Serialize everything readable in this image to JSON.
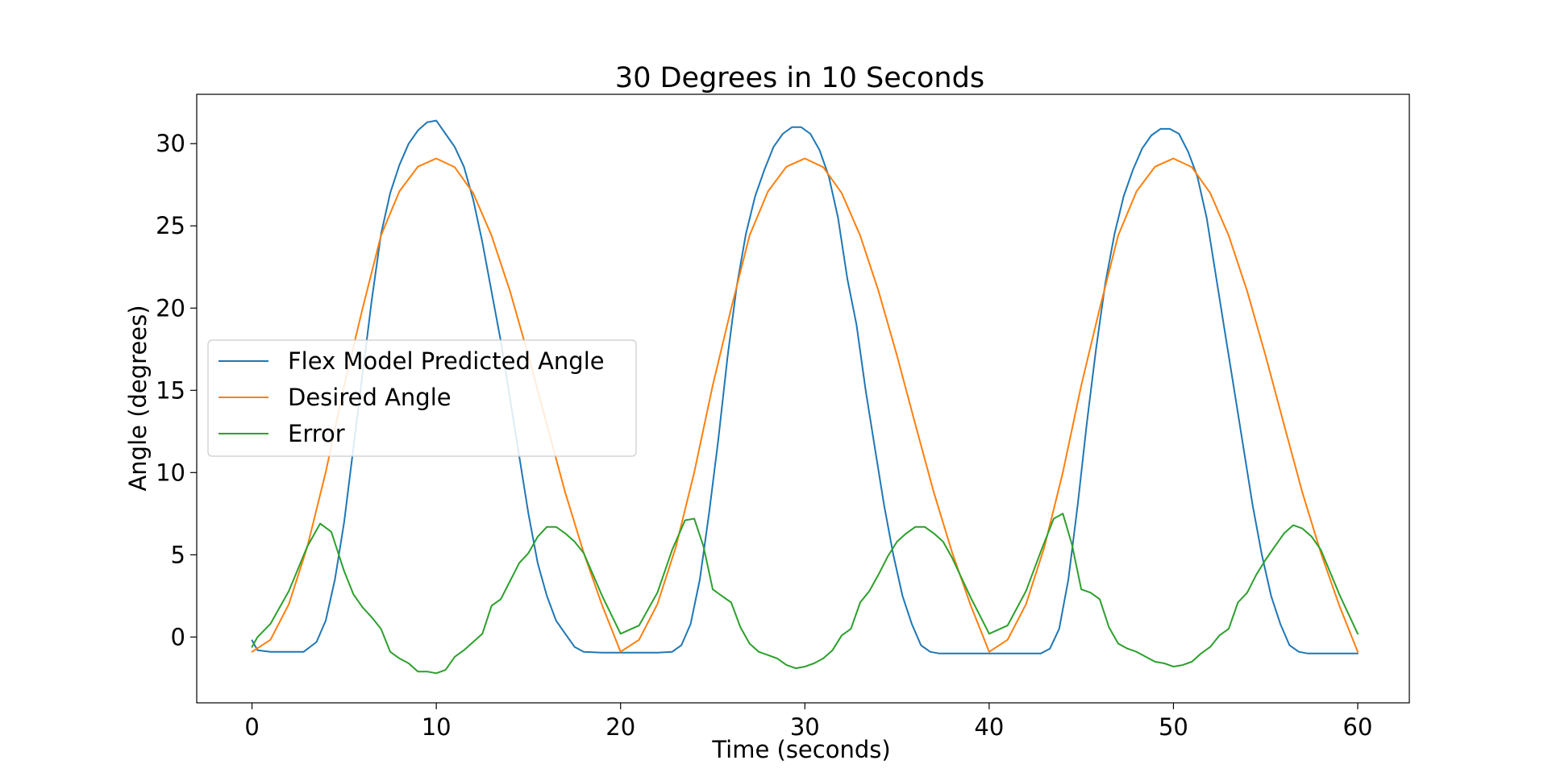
{
  "chart_data": {
    "type": "line",
    "title": "30 Degrees in 10 Seconds",
    "xlabel": "Time (seconds)",
    "ylabel": "Angle (degrees)",
    "xlim": [
      -3,
      62.8
    ],
    "ylim": [
      -4,
      33
    ],
    "xticks": [
      0,
      10,
      20,
      30,
      40,
      50,
      60
    ],
    "yticks": [
      0,
      5,
      10,
      15,
      20,
      25,
      30
    ],
    "grid": false,
    "legend_position": "center-left",
    "series": [
      {
        "name": "Flex Model Predicted Angle",
        "color": "#1f77b4",
        "x": [
          0,
          0.3,
          1,
          2,
          2.8,
          3.5,
          4,
          4.5,
          5,
          5.5,
          6,
          6.5,
          7,
          7.5,
          8,
          8.5,
          9,
          9.5,
          10,
          10.5,
          11,
          11.5,
          12,
          12.5,
          13,
          13.5,
          14,
          14.5,
          15,
          15.5,
          16,
          16.5,
          17,
          17.5,
          18,
          19,
          20,
          21,
          22,
          22.8,
          23.3,
          23.8,
          24.3,
          24.8,
          25.3,
          25.8,
          26.3,
          26.8,
          27.3,
          27.8,
          28.3,
          28.8,
          29.3,
          29.8,
          30.3,
          30.8,
          31.3,
          31.8,
          32.3,
          32.8,
          33.3,
          33.8,
          34.3,
          34.8,
          35.3,
          35.8,
          36.3,
          36.8,
          37.3,
          38,
          39,
          40,
          41,
          42,
          42.8,
          43.3,
          43.8,
          44.3,
          44.8,
          45.3,
          45.8,
          46.3,
          46.8,
          47.3,
          47.8,
          48.3,
          48.8,
          49.3,
          49.8,
          50.3,
          50.8,
          51.3,
          51.8,
          52.3,
          52.8,
          53.3,
          53.8,
          54.3,
          54.8,
          55.3,
          55.8,
          56.3,
          56.8,
          57.3,
          58,
          59,
          60
        ],
        "y": [
          -0.2,
          -0.8,
          -0.9,
          -0.9,
          -0.9,
          -0.3,
          1,
          3.5,
          7,
          11.5,
          16,
          20.5,
          24.5,
          27,
          28.7,
          30,
          30.8,
          31.3,
          31.4,
          30.6,
          29.8,
          28.6,
          26.6,
          24,
          21,
          18,
          14.5,
          11,
          7.5,
          4.5,
          2.5,
          1,
          0.2,
          -0.6,
          -0.9,
          -0.95,
          -0.95,
          -0.95,
          -0.95,
          -0.9,
          -0.5,
          0.8,
          3.5,
          7.5,
          12,
          17,
          21.3,
          24.5,
          26.8,
          28.4,
          29.8,
          30.6,
          31,
          31,
          30.6,
          29.6,
          28,
          25.5,
          21.8,
          19,
          15,
          11.5,
          8,
          5,
          2.5,
          0.8,
          -0.5,
          -0.9,
          -1,
          -1,
          -1,
          -1,
          -1,
          -1,
          -1,
          -0.7,
          0.5,
          3.5,
          8,
          13,
          17.5,
          21.5,
          24.5,
          26.8,
          28.4,
          29.7,
          30.5,
          30.9,
          30.9,
          30.6,
          29.5,
          28,
          25.5,
          22,
          18.5,
          15,
          11.5,
          8,
          5,
          2.5,
          0.8,
          -0.5,
          -0.9,
          -1,
          -1,
          -1,
          -1
        ]
      },
      {
        "name": "Desired Angle",
        "color": "#ff7f0e",
        "x": [
          0,
          1,
          2,
          3,
          4,
          5,
          6,
          7,
          8,
          9,
          10,
          11,
          12,
          13,
          14,
          15,
          16,
          17,
          18,
          19,
          20,
          21,
          22,
          23,
          24,
          25,
          26,
          27,
          28,
          29,
          30,
          31,
          32,
          33,
          34,
          35,
          36,
          37,
          38,
          39,
          40,
          41,
          42,
          43,
          44,
          45,
          46,
          47,
          48,
          49,
          50,
          51,
          52,
          53,
          54,
          55,
          56,
          57,
          58,
          59,
          60
        ],
        "y": [
          -0.9,
          -0.17,
          2.0,
          5.48,
          10.02,
          15.3,
          19.98,
          24.42,
          27.1,
          28.6,
          29.1,
          28.57,
          26.99,
          24.41,
          21.03,
          17.1,
          12.91,
          8.78,
          5.12,
          1.92,
          -0.9,
          -0.17,
          2.0,
          5.48,
          10.02,
          15.3,
          19.98,
          24.42,
          27.1,
          28.6,
          29.1,
          28.57,
          26.99,
          24.41,
          21.03,
          17.1,
          12.91,
          8.78,
          5.12,
          1.92,
          -0.9,
          -0.17,
          2.0,
          5.48,
          10.02,
          15.3,
          19.98,
          24.42,
          27.1,
          28.6,
          29.1,
          28.57,
          26.99,
          24.41,
          21.03,
          17.1,
          12.91,
          8.78,
          5.12,
          1.92,
          -0.9
        ]
      },
      {
        "name": "Error",
        "color": "#2ca02c",
        "x": [
          0,
          0.3,
          1,
          2,
          3,
          3.7,
          4.3,
          5,
          5.5,
          6,
          6.5,
          7,
          7.5,
          8,
          8.5,
          9,
          9.5,
          10,
          10.5,
          11,
          11.5,
          12,
          12.5,
          13,
          13.5,
          14,
          14.5,
          15,
          15.5,
          16,
          16.5,
          17,
          17.5,
          18,
          19,
          20,
          21,
          22,
          22.8,
          23.5,
          24,
          24.5,
          25,
          25.5,
          26,
          26.5,
          27,
          27.5,
          28,
          28.5,
          29,
          29.5,
          30,
          30.5,
          31,
          31.5,
          32,
          32.5,
          33,
          33.5,
          34,
          34.5,
          35,
          35.5,
          36,
          36.5,
          37,
          37.5,
          38,
          39,
          40,
          41,
          42,
          42.8,
          43.5,
          44,
          44.5,
          45,
          45.5,
          46,
          46.5,
          47,
          47.5,
          48,
          48.5,
          49,
          49.5,
          50,
          50.5,
          51,
          51.5,
          52,
          52.5,
          53,
          53.5,
          54,
          54.5,
          55,
          55.5,
          56,
          56.5,
          57,
          57.5,
          58,
          59,
          60
        ],
        "y": [
          -0.6,
          0,
          0.8,
          2.8,
          5.5,
          6.9,
          6.4,
          4.0,
          2.6,
          1.8,
          1.2,
          0.5,
          -0.9,
          -1.3,
          -1.6,
          -2.1,
          -2.1,
          -2.2,
          -2.0,
          -1.2,
          -0.8,
          -0.3,
          0.2,
          1.9,
          2.3,
          3.4,
          4.5,
          5.1,
          6.1,
          6.7,
          6.7,
          6.3,
          5.8,
          5.1,
          2.5,
          0.2,
          0.7,
          2.7,
          5.3,
          7.1,
          7.2,
          5.5,
          2.9,
          2.5,
          2.1,
          0.6,
          -0.4,
          -0.9,
          -1.1,
          -1.3,
          -1.7,
          -1.9,
          -1.8,
          -1.6,
          -1.3,
          -0.8,
          0.1,
          0.5,
          2.1,
          2.8,
          3.8,
          4.9,
          5.8,
          6.3,
          6.7,
          6.7,
          6.3,
          5.8,
          4.8,
          2.4,
          0.2,
          0.7,
          2.8,
          5.2,
          7.2,
          7.5,
          5.6,
          2.9,
          2.7,
          2.3,
          0.6,
          -0.4,
          -0.7,
          -0.9,
          -1.2,
          -1.5,
          -1.6,
          -1.8,
          -1.7,
          -1.5,
          -1.0,
          -0.6,
          0.1,
          0.5,
          2.1,
          2.7,
          3.8,
          4.7,
          5.5,
          6.3,
          6.8,
          6.6,
          6.1,
          5.3,
          2.6,
          0.2
        ]
      }
    ]
  }
}
